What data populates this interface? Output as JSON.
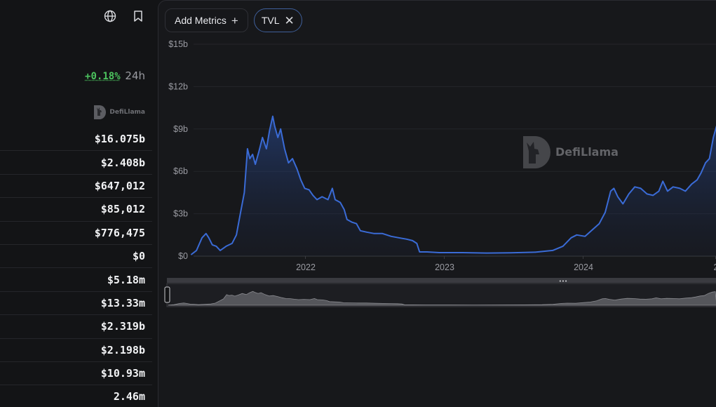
{
  "header": {
    "globe_icon": "globe-icon",
    "bookmark_icon": "bookmark-icon",
    "change": "+0.18%",
    "change_period": "24h",
    "brand": "DefiLlama"
  },
  "stats": [
    "$16.075b",
    "$2.408b",
    "$647,012",
    "$85,012",
    "$776,475",
    "$0",
    "$5.18m",
    "$13.33m",
    "$2.319b",
    "$2.198b",
    "$10.93m",
    "2.46m"
  ],
  "toolbar": {
    "add_metrics_label": "Add Metrics",
    "add_icon": "plus-icon",
    "tvl_label": "TVL",
    "remove_icon": "close-icon"
  },
  "colors": {
    "accent": "#2172e5",
    "line": "#3a6bd6",
    "positive": "#4cc35e",
    "panel": "#17181b",
    "background": "#131416"
  },
  "chart_data": {
    "type": "area",
    "title": "",
    "xlabel": "",
    "ylabel": "",
    "ylim": [
      0,
      15
    ],
    "y_unit": "billions USD",
    "yticks": [
      "$0",
      "$3b",
      "$6b",
      "$9b",
      "$12b",
      "$15b"
    ],
    "xticks": [
      "2022",
      "2023",
      "2024",
      "2"
    ],
    "grid": true,
    "watermark": "DefiLlama",
    "series": [
      {
        "points": [
          [
            "2021-04-12",
            0.1
          ],
          [
            "2021-04-26",
            0.4
          ],
          [
            "2021-05-10",
            1.3
          ],
          [
            "2021-05-20",
            1.6
          ],
          [
            "2021-05-27",
            1.3
          ],
          [
            "2021-06-05",
            0.8
          ],
          [
            "2021-06-15",
            0.7
          ],
          [
            "2021-06-25",
            0.4
          ],
          [
            "2021-07-10",
            0.7
          ],
          [
            "2021-07-25",
            0.9
          ],
          [
            "2021-08-05",
            1.5
          ],
          [
            "2021-08-15",
            3.0
          ],
          [
            "2021-08-25",
            4.5
          ],
          [
            "2021-09-02",
            7.6
          ],
          [
            "2021-09-08",
            6.9
          ],
          [
            "2021-09-15",
            7.2
          ],
          [
            "2021-09-22",
            6.5
          ],
          [
            "2021-10-01",
            7.4
          ],
          [
            "2021-10-10",
            8.4
          ],
          [
            "2021-10-20",
            7.6
          ],
          [
            "2021-10-28",
            8.9
          ],
          [
            "2021-11-05",
            9.9
          ],
          [
            "2021-11-10",
            9.2
          ],
          [
            "2021-11-18",
            8.4
          ],
          [
            "2021-11-25",
            9.0
          ],
          [
            "2021-12-05",
            7.6
          ],
          [
            "2021-12-15",
            6.6
          ],
          [
            "2021-12-25",
            6.9
          ],
          [
            "2022-01-05",
            6.2
          ],
          [
            "2022-01-15",
            5.4
          ],
          [
            "2022-01-25",
            4.8
          ],
          [
            "2022-02-05",
            4.7
          ],
          [
            "2022-02-15",
            4.3
          ],
          [
            "2022-02-25",
            4.0
          ],
          [
            "2022-03-10",
            4.2
          ],
          [
            "2022-03-25",
            4.0
          ],
          [
            "2022-04-05",
            4.8
          ],
          [
            "2022-04-12",
            4.0
          ],
          [
            "2022-04-25",
            3.8
          ],
          [
            "2022-05-05",
            3.3
          ],
          [
            "2022-05-12",
            2.6
          ],
          [
            "2022-05-25",
            2.4
          ],
          [
            "2022-06-05",
            2.3
          ],
          [
            "2022-06-15",
            1.8
          ],
          [
            "2022-07-01",
            1.7
          ],
          [
            "2022-07-20",
            1.6
          ],
          [
            "2022-08-10",
            1.6
          ],
          [
            "2022-09-01",
            1.4
          ],
          [
            "2022-09-20",
            1.3
          ],
          [
            "2022-10-10",
            1.2
          ],
          [
            "2022-10-25",
            1.1
          ],
          [
            "2022-11-05",
            0.9
          ],
          [
            "2022-11-12",
            0.3
          ],
          [
            "2022-12-01",
            0.3
          ],
          [
            "2023-01-01",
            0.25
          ],
          [
            "2023-03-01",
            0.25
          ],
          [
            "2023-05-01",
            0.22
          ],
          [
            "2023-07-01",
            0.24
          ],
          [
            "2023-09-01",
            0.28
          ],
          [
            "2023-10-15",
            0.4
          ],
          [
            "2023-11-10",
            0.7
          ],
          [
            "2023-12-01",
            1.3
          ],
          [
            "2023-12-15",
            1.5
          ],
          [
            "2024-01-05",
            1.4
          ],
          [
            "2024-01-25",
            1.9
          ],
          [
            "2024-02-10",
            2.3
          ],
          [
            "2024-02-25",
            3.1
          ],
          [
            "2024-03-10",
            4.6
          ],
          [
            "2024-03-18",
            4.8
          ],
          [
            "2024-03-28",
            4.2
          ],
          [
            "2024-04-10",
            3.7
          ],
          [
            "2024-04-25",
            4.4
          ],
          [
            "2024-05-10",
            4.9
          ],
          [
            "2024-05-25",
            4.8
          ],
          [
            "2024-06-10",
            4.4
          ],
          [
            "2024-06-25",
            4.3
          ],
          [
            "2024-07-10",
            4.6
          ],
          [
            "2024-07-20",
            5.3
          ],
          [
            "2024-08-01",
            4.6
          ],
          [
            "2024-08-15",
            4.9
          ],
          [
            "2024-09-01",
            4.8
          ],
          [
            "2024-09-15",
            4.6
          ],
          [
            "2024-10-01",
            5.1
          ],
          [
            "2024-10-15",
            5.4
          ],
          [
            "2024-10-25",
            5.9
          ],
          [
            "2024-11-05",
            6.6
          ],
          [
            "2024-11-15",
            6.9
          ],
          [
            "2024-11-25",
            8.4
          ],
          [
            "2024-12-05",
            9.4
          ],
          [
            "2024-12-12",
            9.7
          ]
        ]
      }
    ]
  }
}
